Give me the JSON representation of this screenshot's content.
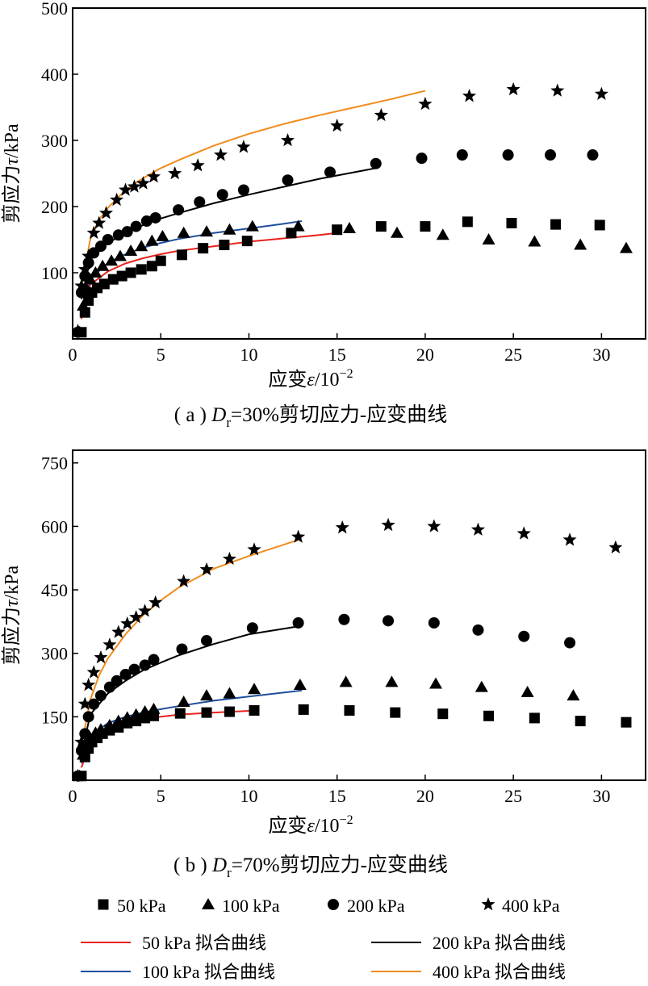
{
  "figure": {
    "legend": {
      "markers": [
        {
          "label": "50 kPa",
          "shape": "square"
        },
        {
          "label": "100 kPa",
          "shape": "triangle"
        },
        {
          "label": "200 kPa",
          "shape": "circle"
        },
        {
          "label": "400 kPa",
          "shape": "star"
        }
      ],
      "lines": [
        {
          "label": "50 kPa 拟合曲线",
          "color": "#e8231c"
        },
        {
          "label": "200 kPa 拟合曲线",
          "color": "#000000"
        },
        {
          "label": "100 kPa 拟合曲线",
          "color": "#1f4e9c"
        },
        {
          "label": "400 kPa 拟合曲线",
          "color": "#f08c1e"
        }
      ]
    }
  },
  "chart_data": [
    {
      "type": "scatter",
      "caption_prefix": "( a ) ",
      "caption_d": "D",
      "caption_sub": "r",
      "caption_rest": "=30%剪切应力-应变曲线",
      "xlabel_prefix": "应变",
      "xlabel_var": "ε",
      "xlabel_unit": "/10",
      "xlabel_exp": "−2",
      "ylabel_prefix": "剪应力",
      "ylabel_var": "τ",
      "ylabel_unit": "/kPa",
      "xlim": [
        0,
        32.5
      ],
      "ylim": [
        0,
        500
      ],
      "xticks": [
        0,
        5,
        10,
        15,
        20,
        25,
        30
      ],
      "yticks": [
        100,
        200,
        300,
        400,
        500
      ],
      "series": [
        {
          "name": "50 kPa",
          "shape": "square",
          "x": [
            0.5,
            0.7,
            0.9,
            1.1,
            1.4,
            1.8,
            2.3,
            2.8,
            3.3,
            3.9,
            4.5,
            5.0,
            6.2,
            7.4,
            8.6,
            9.9,
            12.4,
            15.0,
            17.5,
            20.0,
            22.4,
            24.9,
            27.4,
            29.9
          ],
          "y": [
            10,
            40,
            58,
            70,
            77,
            83,
            90,
            95,
            100,
            105,
            110,
            118,
            127,
            137,
            142,
            148,
            160,
            165,
            170,
            170,
            177,
            175,
            173,
            172
          ]
        },
        {
          "name": "100 kPa",
          "shape": "triangle",
          "x": [
            0.4,
            0.6,
            0.8,
            1.0,
            1.3,
            1.7,
            2.2,
            2.7,
            3.3,
            3.9,
            4.5,
            5.1,
            6.3,
            7.6,
            8.9,
            10.2,
            12.8,
            15.7,
            18.4,
            21.0,
            23.6,
            26.2,
            28.8,
            31.4
          ],
          "y": [
            10,
            50,
            75,
            90,
            100,
            110,
            118,
            125,
            133,
            140,
            148,
            155,
            160,
            162,
            165,
            170,
            170,
            167,
            160,
            157,
            150,
            147,
            142,
            137
          ]
        },
        {
          "name": "200 kPa",
          "shape": "circle",
          "x": [
            0.3,
            0.5,
            0.7,
            0.9,
            1.2,
            1.6,
            2.0,
            2.6,
            3.1,
            3.6,
            4.2,
            4.7,
            6.0,
            7.2,
            8.5,
            9.7,
            12.2,
            14.6,
            17.2,
            19.8,
            22.1,
            24.7,
            27.1,
            29.5
          ],
          "y": [
            10,
            70,
            95,
            115,
            130,
            140,
            150,
            157,
            162,
            170,
            178,
            183,
            195,
            207,
            218,
            225,
            240,
            252,
            265,
            273,
            278,
            278,
            278,
            278
          ]
        },
        {
          "name": "400 kPa",
          "shape": "star",
          "x": [
            0.3,
            0.5,
            0.7,
            0.9,
            1.2,
            1.5,
            1.9,
            2.5,
            3.0,
            3.5,
            4.0,
            4.6,
            5.8,
            7.1,
            8.4,
            9.7,
            12.2,
            15.0,
            17.5,
            20.0,
            22.5,
            25.0,
            27.5,
            30.0
          ],
          "y": [
            12,
            80,
            105,
            125,
            160,
            175,
            190,
            210,
            225,
            230,
            235,
            245,
            250,
            262,
            278,
            290,
            300,
            322,
            338,
            355,
            367,
            377,
            375,
            370
          ]
        },
        {
          "name": "50 kPa 拟合曲线",
          "type": "line",
          "color": "#e8231c",
          "x": [
            0.5,
            1,
            2,
            3,
            4,
            5,
            6,
            8,
            10,
            12,
            14,
            15
          ],
          "y": [
            30,
            82,
            102,
            114,
            122,
            128,
            133,
            140,
            147,
            152,
            157,
            160
          ]
        },
        {
          "name": "100 kPa 拟合曲线",
          "type": "line",
          "color": "#1f4e9c",
          "x": [
            0.5,
            1,
            2,
            3,
            4,
            5,
            6,
            8,
            10,
            12,
            13
          ],
          "y": [
            35,
            90,
            115,
            128,
            138,
            145,
            151,
            160,
            167,
            174,
            178
          ]
        },
        {
          "name": "200 kPa 拟合曲线",
          "type": "line",
          "color": "#000000",
          "x": [
            0.5,
            1,
            2,
            3,
            4,
            5,
            6,
            8,
            10,
            12,
            14,
            16,
            17.2
          ],
          "y": [
            60,
            120,
            145,
            160,
            172,
            182,
            190,
            205,
            218,
            230,
            242,
            252,
            258
          ]
        },
        {
          "name": "400 kPa 拟合曲线",
          "type": "line",
          "color": "#f08c1e",
          "x": [
            0.5,
            1,
            1.5,
            2,
            3,
            4,
            5,
            6,
            8,
            10,
            12,
            14,
            16,
            18,
            20
          ],
          "y": [
            80,
            150,
            180,
            198,
            225,
            243,
            258,
            270,
            292,
            310,
            325,
            338,
            350,
            362,
            375
          ]
        }
      ]
    },
    {
      "type": "scatter",
      "caption_prefix": "( b ) ",
      "caption_d": "D",
      "caption_sub": "r",
      "caption_rest": "=70%剪切应力-应变曲线",
      "xlabel_prefix": "应变",
      "xlabel_var": "ε",
      "xlabel_unit": "/10",
      "xlabel_exp": "−2",
      "ylabel_prefix": "剪应力",
      "ylabel_var": "τ",
      "ylabel_unit": "/kPa",
      "xlim": [
        0,
        32.5
      ],
      "ylim": [
        0,
        780
      ],
      "xticks": [
        0,
        5,
        10,
        15,
        20,
        25,
        30
      ],
      "yticks": [
        150,
        300,
        450,
        600,
        750
      ],
      "series": [
        {
          "name": "50 kPa",
          "shape": "square",
          "x": [
            0.5,
            0.7,
            0.9,
            1.1,
            1.4,
            1.7,
            2.1,
            2.6,
            3.1,
            3.6,
            4.1,
            4.6,
            6.1,
            7.6,
            8.9,
            10.3,
            13.1,
            15.7,
            18.3,
            21.0,
            23.6,
            26.2,
            28.8,
            31.4
          ],
          "y": [
            10,
            55,
            75,
            90,
            100,
            110,
            118,
            125,
            135,
            140,
            147,
            152,
            158,
            160,
            162,
            165,
            167,
            165,
            160,
            157,
            152,
            147,
            140,
            137
          ]
        },
        {
          "name": "100 kPa",
          "shape": "triangle",
          "x": [
            0.4,
            0.6,
            0.8,
            1.0,
            1.3,
            1.6,
            2.1,
            2.6,
            3.1,
            3.6,
            4.1,
            4.6,
            6.3,
            7.6,
            8.9,
            10.3,
            12.9,
            15.5,
            18.1,
            20.6,
            23.2,
            25.8,
            28.4
          ],
          "y": [
            10,
            60,
            85,
            100,
            112,
            120,
            130,
            140,
            148,
            155,
            162,
            168,
            185,
            200,
            205,
            215,
            225,
            232,
            232,
            228,
            220,
            208,
            200
          ]
        },
        {
          "name": "200 kPa",
          "shape": "circle",
          "x": [
            0.3,
            0.5,
            0.7,
            0.9,
            1.2,
            1.6,
            2.1,
            2.5,
            3.0,
            3.5,
            4.1,
            4.6,
            6.2,
            7.6,
            10.2,
            12.8,
            15.4,
            17.9,
            20.5,
            23.0,
            25.6,
            28.2
          ],
          "y": [
            10,
            70,
            110,
            150,
            180,
            200,
            220,
            235,
            250,
            262,
            272,
            285,
            310,
            330,
            360,
            372,
            380,
            377,
            372,
            355,
            340,
            325
          ]
        },
        {
          "name": "400 kPa",
          "shape": "star",
          "x": [
            0.3,
            0.5,
            0.7,
            0.9,
            1.2,
            1.6,
            2.1,
            2.6,
            3.1,
            3.6,
            4.1,
            4.7,
            6.3,
            7.6,
            8.9,
            10.3,
            12.8,
            15.3,
            17.9,
            20.5,
            23.0,
            25.6,
            28.2,
            30.8
          ],
          "y": [
            10,
            90,
            180,
            225,
            255,
            290,
            320,
            350,
            370,
            385,
            400,
            420,
            470,
            498,
            523,
            545,
            575,
            597,
            603,
            600,
            592,
            583,
            568,
            550
          ]
        },
        {
          "name": "50 kPa 拟合曲线",
          "type": "line",
          "color": "#e8231c",
          "x": [
            0.5,
            1,
            2,
            3,
            4,
            5,
            6,
            8,
            10.5
          ],
          "y": [
            30,
            90,
            118,
            132,
            142,
            150,
            155,
            160,
            165
          ]
        },
        {
          "name": "100 kPa 拟合曲线",
          "type": "line",
          "color": "#1f4e9c",
          "x": [
            0.5,
            1,
            2,
            3,
            4,
            5,
            6,
            8,
            10,
            13
          ],
          "y": [
            40,
            105,
            135,
            150,
            160,
            168,
            175,
            188,
            198,
            212
          ]
        },
        {
          "name": "200 kPa 拟合曲线",
          "type": "line",
          "color": "#000000",
          "x": [
            0.5,
            1,
            2,
            3,
            4,
            5,
            6,
            8,
            10,
            13
          ],
          "y": [
            60,
            155,
            205,
            235,
            260,
            278,
            295,
            322,
            345,
            365
          ]
        },
        {
          "name": "400 kPa 拟合曲线",
          "type": "line",
          "color": "#f08c1e",
          "x": [
            0.5,
            1,
            1.5,
            2,
            3,
            4,
            5,
            6,
            8,
            10,
            12.8
          ],
          "y": [
            80,
            190,
            248,
            288,
            345,
            390,
            425,
            455,
            500,
            530,
            568
          ]
        }
      ]
    }
  ]
}
